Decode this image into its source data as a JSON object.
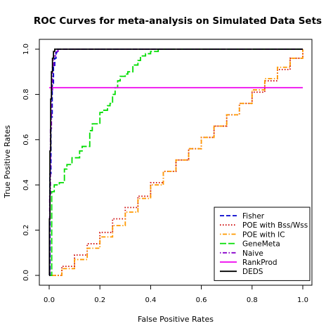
{
  "chart_data": {
    "type": "line",
    "title": "ROC Curves for meta-analysis on Simulated Data Sets",
    "xlabel": "False Positive Rates",
    "ylabel": "True Positive Rates",
    "xlim": [
      0,
      1
    ],
    "ylim": [
      0,
      1
    ],
    "x_ticks": [
      "0.0",
      "0.2",
      "0.4",
      "0.6",
      "0.8",
      "1.0"
    ],
    "y_ticks": [
      "0.0",
      "0.2",
      "0.4",
      "0.6",
      "0.8",
      "1.0"
    ],
    "grid": false,
    "legend_position": "bottom-right",
    "series": [
      {
        "name": "Fisher",
        "color": "#0000cc",
        "dash": "dashed",
        "x": [
          0.0,
          0.003,
          0.007,
          0.012,
          0.017,
          0.022,
          0.027,
          0.03,
          0.04,
          1.0
        ],
        "y": [
          0.0,
          0.45,
          0.7,
          0.85,
          0.92,
          0.96,
          0.985,
          1.0,
          1.0,
          1.0
        ]
      },
      {
        "name": "POE with Bss/Wss",
        "color": "#cc0000",
        "dash": "dotted",
        "x": [
          0.0,
          0.05,
          0.1,
          0.15,
          0.2,
          0.25,
          0.3,
          0.35,
          0.4,
          0.45,
          0.5,
          0.55,
          0.6,
          0.65,
          0.7,
          0.75,
          0.8,
          0.85,
          0.9,
          0.95,
          1.0
        ],
        "y": [
          0.0,
          0.04,
          0.09,
          0.14,
          0.19,
          0.25,
          0.3,
          0.35,
          0.41,
          0.46,
          0.51,
          0.56,
          0.61,
          0.66,
          0.71,
          0.76,
          0.81,
          0.86,
          0.91,
          0.96,
          1.0
        ]
      },
      {
        "name": "POE with IC",
        "color": "#ff9900",
        "dash": "dotdash",
        "x": [
          0.0,
          0.05,
          0.1,
          0.15,
          0.2,
          0.25,
          0.3,
          0.35,
          0.4,
          0.45,
          0.5,
          0.55,
          0.6,
          0.65,
          0.7,
          0.75,
          0.8,
          0.85,
          0.9,
          0.95,
          1.0
        ],
        "y": [
          0.0,
          0.03,
          0.07,
          0.12,
          0.17,
          0.22,
          0.28,
          0.34,
          0.4,
          0.46,
          0.51,
          0.56,
          0.61,
          0.66,
          0.71,
          0.76,
          0.82,
          0.87,
          0.92,
          0.96,
          1.0
        ]
      },
      {
        "name": "GeneMeta",
        "color": "#00dd00",
        "dash": "longdash",
        "x": [
          0.0,
          0.01,
          0.01,
          0.02,
          0.04,
          0.06,
          0.07,
          0.09,
          0.12,
          0.13,
          0.14,
          0.16,
          0.17,
          0.18,
          0.2,
          0.21,
          0.23,
          0.24,
          0.25,
          0.26,
          0.27,
          0.28,
          0.3,
          0.31,
          0.33,
          0.35,
          0.36,
          0.38,
          0.4,
          0.42,
          0.43,
          1.0
        ],
        "y": [
          0.0,
          0.2,
          0.37,
          0.4,
          0.41,
          0.47,
          0.49,
          0.52,
          0.55,
          0.57,
          0.57,
          0.64,
          0.67,
          0.67,
          0.72,
          0.73,
          0.75,
          0.76,
          0.8,
          0.83,
          0.86,
          0.88,
          0.89,
          0.9,
          0.93,
          0.95,
          0.97,
          0.98,
          0.99,
          0.99,
          1.0,
          1.0
        ]
      },
      {
        "name": "Naive",
        "color": "#8800cc",
        "dash": "dotdash",
        "x": [
          0.0,
          0.002,
          0.005,
          0.009,
          0.013,
          0.018,
          0.025,
          0.035,
          1.0
        ],
        "y": [
          0.0,
          0.35,
          0.65,
          0.82,
          0.92,
          0.97,
          0.99,
          1.0,
          1.0
        ]
      },
      {
        "name": "RankProd",
        "color": "#ee00ee",
        "dash": "solid",
        "x": [
          0.0,
          1.0
        ],
        "y": [
          0.83,
          0.83
        ]
      },
      {
        "name": "DEDS",
        "color": "#000000",
        "dash": "solid",
        "x": [
          0.0,
          0.001,
          0.003,
          0.006,
          0.009,
          0.013,
          0.017,
          0.022,
          1.0
        ],
        "y": [
          0.0,
          0.25,
          0.55,
          0.78,
          0.9,
          0.96,
          0.99,
          1.0,
          1.0
        ]
      }
    ]
  }
}
